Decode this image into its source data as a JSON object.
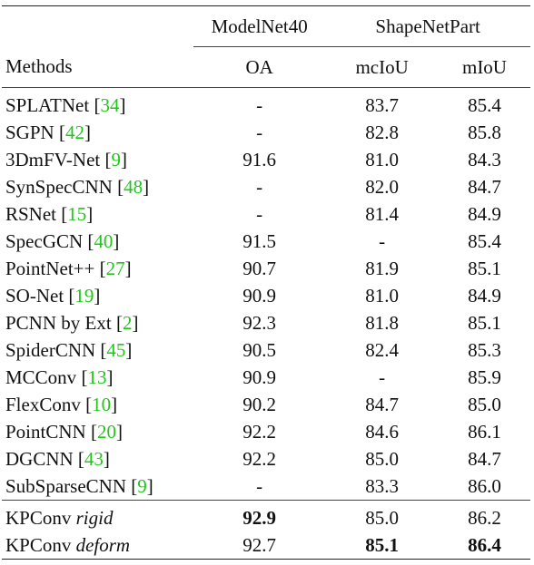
{
  "table": {
    "group_headers": [
      "",
      "ModelNet40",
      "ShapeNetPart"
    ],
    "column_headers": [
      "Methods",
      "OA",
      "mcIoU",
      "mIoU"
    ],
    "rows": [
      {
        "name": "SPLATNet",
        "cite": "34",
        "oa": "-",
        "mcIoU": "83.7",
        "mIoU": "85.4"
      },
      {
        "name": "SGPN",
        "cite": "42",
        "oa": "-",
        "mcIoU": "82.8",
        "mIoU": "85.8"
      },
      {
        "name": "3DmFV-Net",
        "cite": "9",
        "oa": "91.6",
        "mcIoU": "81.0",
        "mIoU": "84.3"
      },
      {
        "name": "SynSpecCNN",
        "cite": "48",
        "oa": "-",
        "mcIoU": "82.0",
        "mIoU": "84.7"
      },
      {
        "name": "RSNet",
        "cite": "15",
        "oa": "-",
        "mcIoU": "81.4",
        "mIoU": "84.9"
      },
      {
        "name": "SpecGCN",
        "cite": "40",
        "oa": "91.5",
        "mcIoU": "-",
        "mIoU": "85.4"
      },
      {
        "name": "PointNet++",
        "cite": "27",
        "oa": "90.7",
        "mcIoU": "81.9",
        "mIoU": "85.1"
      },
      {
        "name": "SO-Net",
        "cite": "19",
        "oa": "90.9",
        "mcIoU": "81.0",
        "mIoU": "84.9"
      },
      {
        "name": "PCNN by Ext",
        "cite": "2",
        "oa": "92.3",
        "mcIoU": "81.8",
        "mIoU": "85.1"
      },
      {
        "name": "SpiderCNN",
        "cite": "45",
        "oa": "90.5",
        "mcIoU": "82.4",
        "mIoU": "85.3"
      },
      {
        "name": "MCConv",
        "cite": "13",
        "oa": "90.9",
        "mcIoU": "-",
        "mIoU": "85.9"
      },
      {
        "name": "FlexConv",
        "cite": "10",
        "oa": "90.2",
        "mcIoU": "84.7",
        "mIoU": "85.0"
      },
      {
        "name": "PointCNN",
        "cite": "20",
        "oa": "92.2",
        "mcIoU": "84.6",
        "mIoU": "86.1"
      },
      {
        "name": "DGCNN",
        "cite": "43",
        "oa": "92.2",
        "mcIoU": "85.0",
        "mIoU": "84.7"
      },
      {
        "name": "SubSparseCNN",
        "cite": "9",
        "oa": "-",
        "mcIoU": "83.3",
        "mIoU": "86.0"
      }
    ],
    "ours": [
      {
        "name": "KPConv",
        "variant": "rigid",
        "oa": "92.9",
        "mcIoU": "85.0",
        "mIoU": "86.2"
      },
      {
        "name": "KPConv",
        "variant": "deform",
        "oa": "92.7",
        "mcIoU": "85.1",
        "mIoU": "86.4"
      }
    ],
    "cite_color": "#22c51a"
  }
}
